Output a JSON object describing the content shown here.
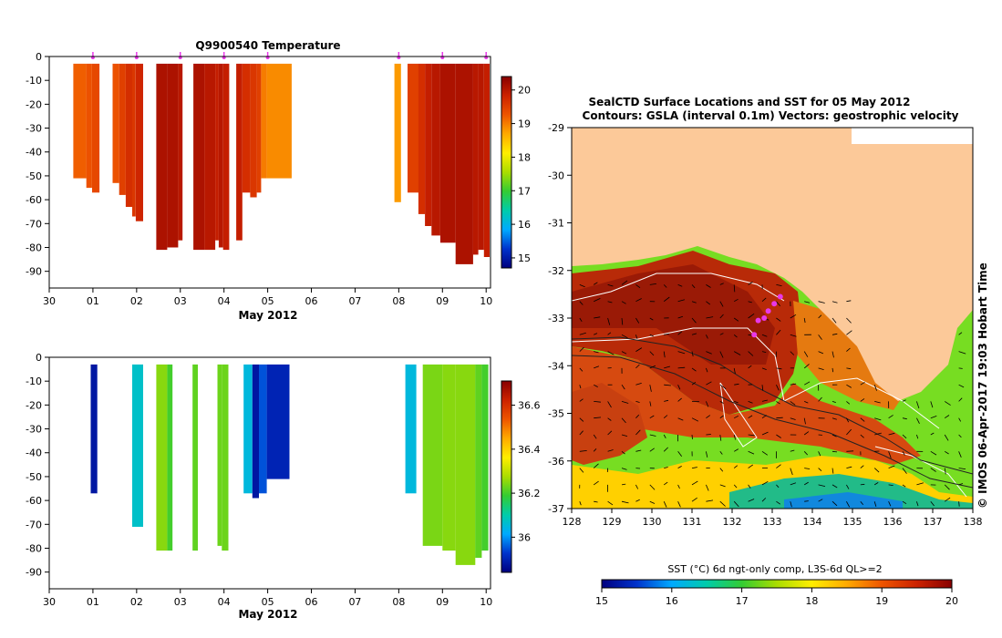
{
  "chart_data": [
    {
      "type": "profile-section",
      "title": "Q9900540  Temperature",
      "xlabel": "May 2012",
      "x_ticks": [
        "30",
        "01",
        "02",
        "03",
        "04",
        "05",
        "06",
        "07",
        "08",
        "09",
        "10"
      ],
      "y_ticks": [
        "0",
        "-10",
        "-20",
        "-30",
        "-40",
        "-50",
        "-60",
        "-70",
        "-80",
        "-90"
      ],
      "ylim": [
        -97,
        0
      ],
      "xlim": [
        0,
        10.1
      ],
      "colorbar": {
        "min": 14.7,
        "max": 20.4,
        "ticks": [
          "15",
          "16",
          "17",
          "18",
          "19",
          "20"
        ],
        "tick_values": [
          15,
          16,
          17,
          18,
          19,
          20
        ]
      },
      "markers_x": [
        1,
        2,
        3,
        4,
        5,
        8,
        9,
        10
      ],
      "bars": [
        {
          "x0": 0.55,
          "x1": 0.85,
          "bottom": -51,
          "v": 19.2
        },
        {
          "x0": 0.85,
          "x1": 0.98,
          "bottom": -55,
          "v": 19.3
        },
        {
          "x0": 0.98,
          "x1": 1.15,
          "bottom": -57,
          "v": 19.4
        },
        {
          "x0": 1.45,
          "x1": 1.6,
          "bottom": -53,
          "v": 19.3
        },
        {
          "x0": 1.6,
          "x1": 1.75,
          "bottom": -58,
          "v": 19.5
        },
        {
          "x0": 1.75,
          "x1": 1.9,
          "bottom": -63,
          "v": 19.7
        },
        {
          "x0": 1.9,
          "x1": 1.98,
          "bottom": -67,
          "v": 19.6
        },
        {
          "x0": 1.98,
          "x1": 2.15,
          "bottom": -69,
          "v": 19.8
        },
        {
          "x0": 2.45,
          "x1": 2.7,
          "bottom": -81,
          "v": 20.1
        },
        {
          "x0": 2.7,
          "x1": 2.95,
          "bottom": -80,
          "v": 20.1
        },
        {
          "x0": 2.95,
          "x1": 3.05,
          "bottom": -77,
          "v": 20.0
        },
        {
          "x0": 3.3,
          "x1": 3.55,
          "bottom": -81,
          "v": 20.1
        },
        {
          "x0": 3.55,
          "x1": 3.8,
          "bottom": -81,
          "v": 20.0
        },
        {
          "x0": 3.8,
          "x1": 3.88,
          "bottom": -77,
          "v": 19.9
        },
        {
          "x0": 3.88,
          "x1": 3.98,
          "bottom": -80,
          "v": 20.0
        },
        {
          "x0": 3.98,
          "x1": 4.12,
          "bottom": -81,
          "v": 19.9
        },
        {
          "x0": 4.28,
          "x1": 4.42,
          "bottom": -77,
          "v": 19.9
        },
        {
          "x0": 4.42,
          "x1": 4.6,
          "bottom": -57,
          "v": 19.7
        },
        {
          "x0": 4.6,
          "x1": 4.75,
          "bottom": -59,
          "v": 19.6
        },
        {
          "x0": 4.75,
          "x1": 4.85,
          "bottom": -57,
          "v": 19.5
        },
        {
          "x0": 4.85,
          "x1": 4.98,
          "bottom": -51,
          "v": 19.0
        },
        {
          "x0": 4.98,
          "x1": 5.55,
          "bottom": -51,
          "v": 18.9
        },
        {
          "x0": 7.9,
          "x1": 8.05,
          "bottom": -61,
          "v": 18.8
        },
        {
          "x0": 8.2,
          "x1": 8.45,
          "bottom": -57,
          "v": 19.5
        },
        {
          "x0": 8.45,
          "x1": 8.6,
          "bottom": -66,
          "v": 19.7
        },
        {
          "x0": 8.6,
          "x1": 8.75,
          "bottom": -71,
          "v": 19.9
        },
        {
          "x0": 8.75,
          "x1": 8.95,
          "bottom": -75,
          "v": 20.0
        },
        {
          "x0": 8.95,
          "x1": 9.3,
          "bottom": -78,
          "v": 20.1
        },
        {
          "x0": 9.3,
          "x1": 9.7,
          "bottom": -87,
          "v": 20.1
        },
        {
          "x0": 9.7,
          "x1": 9.82,
          "bottom": -83,
          "v": 20.0
        },
        {
          "x0": 9.82,
          "x1": 9.95,
          "bottom": -81,
          "v": 20.0
        },
        {
          "x0": 9.95,
          "x1": 10.08,
          "bottom": -84,
          "v": 19.9
        }
      ]
    },
    {
      "type": "profile-section",
      "title": "",
      "xlabel": "May 2012",
      "x_ticks": [
        "30",
        "01",
        "02",
        "03",
        "04",
        "05",
        "06",
        "07",
        "08",
        "09",
        "10"
      ],
      "y_ticks": [
        "0",
        "-10",
        "-20",
        "-30",
        "-40",
        "-50",
        "-60",
        "-70",
        "-80",
        "-90"
      ],
      "ylim": [
        -97,
        0
      ],
      "xlim": [
        0,
        10.1
      ],
      "colorbar": {
        "min": 35.84,
        "max": 36.71,
        "ticks": [
          "36",
          "36.2",
          "36.4",
          "36.6"
        ],
        "tick_values": [
          36.0,
          36.2,
          36.4,
          36.6
        ]
      },
      "markers_x": [],
      "bars": [
        {
          "x0": 0.95,
          "x1": 1.1,
          "bottom": -57,
          "v": 35.88
        },
        {
          "x0": 1.9,
          "x1": 2.15,
          "bottom": -71,
          "v": 36.07
        },
        {
          "x0": 2.45,
          "x1": 2.7,
          "bottom": -81,
          "v": 36.25
        },
        {
          "x0": 2.7,
          "x1": 2.82,
          "bottom": -81,
          "v": 36.2
        },
        {
          "x0": 3.28,
          "x1": 3.4,
          "bottom": -81,
          "v": 36.22
        },
        {
          "x0": 3.85,
          "x1": 3.95,
          "bottom": -79,
          "v": 36.23
        },
        {
          "x0": 3.95,
          "x1": 4.1,
          "bottom": -81,
          "v": 36.23
        },
        {
          "x0": 4.45,
          "x1": 4.65,
          "bottom": -57,
          "v": 36.05
        },
        {
          "x0": 4.65,
          "x1": 4.8,
          "bottom": -59,
          "v": 35.88
        },
        {
          "x0": 4.8,
          "x1": 4.98,
          "bottom": -57,
          "v": 35.95
        },
        {
          "x0": 4.98,
          "x1": 5.5,
          "bottom": -51,
          "v": 35.9
        },
        {
          "x0": 8.15,
          "x1": 8.4,
          "bottom": -57,
          "v": 36.05
        },
        {
          "x0": 8.55,
          "x1": 9.0,
          "bottom": -79,
          "v": 36.24
        },
        {
          "x0": 9.0,
          "x1": 9.3,
          "bottom": -81,
          "v": 36.25
        },
        {
          "x0": 9.3,
          "x1": 9.75,
          "bottom": -87,
          "v": 36.25
        },
        {
          "x0": 9.75,
          "x1": 9.9,
          "bottom": -84,
          "v": 36.22
        },
        {
          "x0": 9.9,
          "x1": 10.05,
          "bottom": -81,
          "v": 36.2
        }
      ]
    },
    {
      "type": "heatmap",
      "title": "SealCTD Surface Locations and SST for 05 May 2012",
      "subtitle": "Contours: GSLA (interval 0.1m) Vectors: geostrophic velocity",
      "xlim": [
        128,
        138
      ],
      "ylim": [
        -37,
        -29
      ],
      "x_ticks": [
        "128",
        "129",
        "130",
        "131",
        "132",
        "133",
        "134",
        "135",
        "136",
        "137",
        "138"
      ],
      "y_ticks": [
        "-29",
        "-30",
        "-31",
        "-32",
        "-33",
        "-34",
        "-35",
        "-36",
        "-37"
      ],
      "colorbar_title": "SST (°C) 6d ngt-only comp, L3S-6d QL>=2",
      "colorbar": {
        "min": 15,
        "max": 20,
        "ticks": [
          "15",
          "16",
          "17",
          "18",
          "19",
          "20"
        ],
        "tick_values": [
          15,
          16,
          17,
          18,
          19,
          20
        ]
      },
      "seal_locations": [
        {
          "lon": 132.55,
          "lat": -33.35
        },
        {
          "lon": 132.65,
          "lat": -33.05
        },
        {
          "lon": 132.8,
          "lat": -33.0
        },
        {
          "lon": 132.9,
          "lat": -32.85
        },
        {
          "lon": 133.05,
          "lat": -32.7
        },
        {
          "lon": 133.2,
          "lat": -32.55
        }
      ],
      "credit": "© IMOS 06-Apr-2017 19:03 Hobart Time"
    }
  ],
  "colors": {
    "land": "#fcc999",
    "marker": "#e838e8",
    "jet": [
      "#00007f",
      "#0033cc",
      "#00aaff",
      "#00ccaa",
      "#33cc33",
      "#aadd00",
      "#ffee00",
      "#ffaa00",
      "#ee5500",
      "#cc2200",
      "#880000"
    ]
  }
}
